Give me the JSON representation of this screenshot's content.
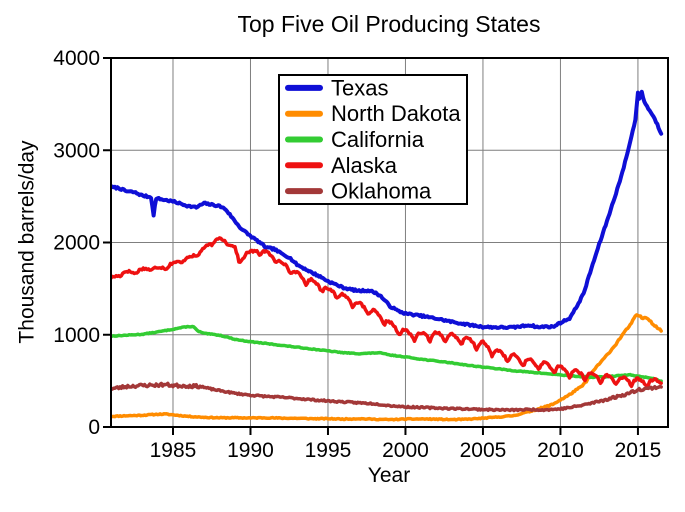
{
  "figure": {
    "title": "Top Five Oil Producing States",
    "xlabel": "Year",
    "ylabel": "Thousand barrels/day"
  },
  "chart_data": {
    "type": "line",
    "title": "Top Five Oil Producing States",
    "xlabel": "Year",
    "ylabel": "Thousand barrels/day",
    "xlim": [
      1981,
      2016.94
    ],
    "ylim": [
      0,
      4000
    ],
    "x_ticks": [
      1985,
      1990,
      1995,
      2000,
      2005,
      2010,
      2015
    ],
    "y_ticks": [
      0,
      1000,
      2000,
      3000,
      4000
    ],
    "grid": true,
    "grid_color": "#7f7f7f",
    "frame_color": "#000000",
    "legend_position": "inside upper-left",
    "units": "thousand barrels per day, monthly",
    "series": [
      {
        "name": "Texas",
        "color": "#0f0fd6",
        "points": [
          [
            1981,
            2600
          ],
          [
            1981.5,
            2590
          ],
          [
            1982,
            2555
          ],
          [
            1982.5,
            2545
          ],
          [
            1983,
            2510
          ],
          [
            1983.6,
            2490
          ],
          [
            1983.75,
            2290
          ],
          [
            1983.9,
            2480
          ],
          [
            1984.5,
            2460
          ],
          [
            1985,
            2445
          ],
          [
            1985.5,
            2420
          ],
          [
            1986,
            2395
          ],
          [
            1986.5,
            2380
          ],
          [
            1987,
            2425
          ],
          [
            1987.5,
            2410
          ],
          [
            1988,
            2395
          ],
          [
            1988.4,
            2360
          ],
          [
            1989,
            2230
          ],
          [
            1989.4,
            2150
          ],
          [
            1990,
            2070
          ],
          [
            1990.6,
            2000
          ],
          [
            1991,
            1945
          ],
          [
            1991.5,
            1930
          ],
          [
            1992,
            1880
          ],
          [
            1992.5,
            1840
          ],
          [
            1993,
            1760
          ],
          [
            1994,
            1670
          ],
          [
            1994.5,
            1630
          ],
          [
            1995,
            1580
          ],
          [
            1995.5,
            1545
          ],
          [
            1996,
            1510
          ],
          [
            1996.5,
            1490
          ],
          [
            1997,
            1475
          ],
          [
            1997.6,
            1480
          ],
          [
            1998,
            1460
          ],
          [
            1998.4,
            1420
          ],
          [
            1999,
            1310
          ],
          [
            1999.5,
            1260
          ],
          [
            2000,
            1230
          ],
          [
            2001,
            1205
          ],
          [
            2002,
            1175
          ],
          [
            2003,
            1140
          ],
          [
            2004,
            1110
          ],
          [
            2005,
            1085
          ],
          [
            2006,
            1080
          ],
          [
            2007,
            1080
          ],
          [
            2008,
            1105
          ],
          [
            2008.6,
            1080
          ],
          [
            2009,
            1090
          ],
          [
            2009.5,
            1085
          ],
          [
            2010,
            1130
          ],
          [
            2010.6,
            1180
          ],
          [
            2011,
            1290
          ],
          [
            2011.5,
            1450
          ],
          [
            2012,
            1720
          ],
          [
            2012.5,
            1980
          ],
          [
            2013,
            2230
          ],
          [
            2013.5,
            2490
          ],
          [
            2014,
            2760
          ],
          [
            2014.5,
            3090
          ],
          [
            2014.83,
            3330
          ],
          [
            2015,
            3620
          ],
          [
            2015.12,
            3540
          ],
          [
            2015.25,
            3635
          ],
          [
            2015.4,
            3530
          ],
          [
            2015.6,
            3470
          ],
          [
            2015.9,
            3395
          ],
          [
            2016.2,
            3300
          ],
          [
            2016.55,
            3160
          ]
        ],
        "render": {
          "seed": 7,
          "jitter": 10,
          "width": 4
        }
      },
      {
        "name": "North Dakota",
        "color": "#ff8c00",
        "points": [
          [
            1981,
            115
          ],
          [
            1982,
            122
          ],
          [
            1983,
            127
          ],
          [
            1984,
            138
          ],
          [
            1984.5,
            140
          ],
          [
            1985,
            132
          ],
          [
            1986,
            115
          ],
          [
            1987,
            105
          ],
          [
            1988,
            100
          ],
          [
            1989,
            100
          ],
          [
            1990,
            98
          ],
          [
            1991,
            100
          ],
          [
            1992,
            96
          ],
          [
            1993,
            94
          ],
          [
            1994,
            90
          ],
          [
            1995,
            90
          ],
          [
            1996,
            86
          ],
          [
            1997,
            90
          ],
          [
            1998,
            84
          ],
          [
            1999,
            80
          ],
          [
            2000,
            86
          ],
          [
            2001,
            87
          ],
          [
            2002,
            85
          ],
          [
            2003,
            80
          ],
          [
            2004,
            84
          ],
          [
            2005,
            95
          ],
          [
            2006,
            108
          ],
          [
            2007,
            124
          ],
          [
            2008,
            168
          ],
          [
            2008.5,
            192
          ],
          [
            2009,
            218
          ],
          [
            2009.5,
            245
          ],
          [
            2010,
            295
          ],
          [
            2010.5,
            340
          ],
          [
            2011,
            400
          ],
          [
            2011.3,
            430
          ],
          [
            2011.6,
            480
          ],
          [
            2012,
            575
          ],
          [
            2012.3,
            650
          ],
          [
            2012.6,
            700
          ],
          [
            2013,
            780
          ],
          [
            2013.5,
            880
          ],
          [
            2014,
            1000
          ],
          [
            2014.5,
            1105
          ],
          [
            2014.9,
            1215
          ],
          [
            2015.1,
            1205
          ],
          [
            2015.3,
            1175
          ],
          [
            2015.5,
            1195
          ],
          [
            2015.75,
            1160
          ],
          [
            2016,
            1110
          ],
          [
            2016.3,
            1070
          ],
          [
            2016.55,
            1035
          ]
        ],
        "render": {
          "seed": 11,
          "jitter": [
            [
              1981,
              5
            ],
            [
              2007,
              5
            ],
            [
              2009,
              8
            ],
            [
              2016.6,
              9
            ]
          ],
          "width": 3.5
        }
      },
      {
        "name": "California",
        "color": "#33cc33",
        "points": [
          [
            1981,
            985
          ],
          [
            1982,
            995
          ],
          [
            1983,
            1005
          ],
          [
            1984,
            1030
          ],
          [
            1985,
            1060
          ],
          [
            1985.8,
            1085
          ],
          [
            1986.3,
            1090
          ],
          [
            1986.6,
            1040
          ],
          [
            1987,
            1015
          ],
          [
            1987.5,
            1005
          ],
          [
            1988,
            995
          ],
          [
            1988.5,
            975
          ],
          [
            1989,
            950
          ],
          [
            1990,
            925
          ],
          [
            1991,
            905
          ],
          [
            1992,
            885
          ],
          [
            1993,
            865
          ],
          [
            1994,
            845
          ],
          [
            1995,
            825
          ],
          [
            1996,
            805
          ],
          [
            1997,
            795
          ],
          [
            1997.7,
            800
          ],
          [
            1998.3,
            805
          ],
          [
            1999,
            780
          ],
          [
            2000,
            760
          ],
          [
            2001,
            735
          ],
          [
            2002,
            715
          ],
          [
            2003,
            695
          ],
          [
            2004,
            670
          ],
          [
            2005,
            650
          ],
          [
            2006,
            630
          ],
          [
            2007,
            610
          ],
          [
            2008,
            595
          ],
          [
            2009,
            580
          ],
          [
            2010,
            565
          ],
          [
            2011,
            550
          ],
          [
            2012,
            540
          ],
          [
            2013,
            545
          ],
          [
            2014,
            560
          ],
          [
            2014.5,
            565
          ],
          [
            2015,
            550
          ],
          [
            2015.5,
            540
          ],
          [
            2016,
            525
          ],
          [
            2016.55,
            492
          ]
        ],
        "render": {
          "seed": 13,
          "jitter": 4,
          "width": 3.5
        }
      },
      {
        "name": "Alaska",
        "color": "#ee1111",
        "points": [
          [
            1981,
            1615
          ],
          [
            1981.5,
            1650
          ],
          [
            1982,
            1685
          ],
          [
            1982.5,
            1680
          ],
          [
            1983,
            1710
          ],
          [
            1983.5,
            1720
          ],
          [
            1984,
            1725
          ],
          [
            1984.5,
            1735
          ],
          [
            1985,
            1775
          ],
          [
            1985.5,
            1800
          ],
          [
            1986,
            1840
          ],
          [
            1986.5,
            1870
          ],
          [
            1987,
            1935
          ],
          [
            1987.5,
            2000
          ],
          [
            1987.9,
            2040
          ],
          [
            1988.3,
            2030
          ],
          [
            1988.7,
            1990
          ],
          [
            1989,
            1940
          ],
          [
            1989.3,
            1770
          ],
          [
            1989.6,
            1890
          ],
          [
            1990,
            1890
          ],
          [
            1990.5,
            1920
          ],
          [
            1991,
            1890
          ],
          [
            1991.5,
            1850
          ],
          [
            1992,
            1780
          ],
          [
            1992.5,
            1730
          ],
          [
            1993,
            1660
          ],
          [
            1993.5,
            1610
          ],
          [
            1994,
            1580
          ],
          [
            1994.5,
            1540
          ],
          [
            1995,
            1490
          ],
          [
            1995.5,
            1460
          ],
          [
            1996,
            1420
          ],
          [
            1996.5,
            1380
          ],
          [
            1997,
            1330
          ],
          [
            1997.5,
            1290
          ],
          [
            1998,
            1240
          ],
          [
            1998.5,
            1190
          ],
          [
            1999,
            1120
          ],
          [
            1999.5,
            1070
          ],
          [
            2000,
            1030
          ],
          [
            2000.5,
            1010
          ],
          [
            2001,
            1000
          ],
          [
            2002,
            1010
          ],
          [
            2003,
            990
          ],
          [
            2004,
            945
          ],
          [
            2005,
            900
          ],
          [
            2006,
            810
          ],
          [
            2007,
            760
          ],
          [
            2008,
            715
          ],
          [
            2009,
            680
          ],
          [
            2010,
            635
          ],
          [
            2011,
            595
          ],
          [
            2012,
            565
          ],
          [
            2013,
            540
          ],
          [
            2014,
            520
          ],
          [
            2015,
            505
          ],
          [
            2016,
            495
          ],
          [
            2016.55,
            510
          ]
        ],
        "render": {
          "seed": 17,
          "jitter": 12,
          "width": 3.5,
          "seasonal": [
            [
              1981,
              14
            ],
            [
              1988,
              24
            ],
            [
              1993,
              44
            ],
            [
              2000,
              55
            ],
            [
              2008,
              60
            ],
            [
              2016.6,
              45
            ]
          ]
        }
      },
      {
        "name": "Oklahoma",
        "color": "#a33838",
        "points": [
          [
            1981,
            415
          ],
          [
            1981.5,
            425
          ],
          [
            1982,
            440
          ],
          [
            1983,
            450
          ],
          [
            1984,
            455
          ],
          [
            1984.5,
            460
          ],
          [
            1985,
            450
          ],
          [
            1986,
            445
          ],
          [
            1986.8,
            440
          ],
          [
            1987.2,
            420
          ],
          [
            1988,
            395
          ],
          [
            1989,
            365
          ],
          [
            1990,
            345
          ],
          [
            1991,
            332
          ],
          [
            1992,
            322
          ],
          [
            1993,
            310
          ],
          [
            1994,
            295
          ],
          [
            1995,
            282
          ],
          [
            1996,
            272
          ],
          [
            1997,
            262
          ],
          [
            1998,
            252
          ],
          [
            1999,
            232
          ],
          [
            2000,
            218
          ],
          [
            2001,
            212
          ],
          [
            2002,
            206
          ],
          [
            2003,
            200
          ],
          [
            2004,
            196
          ],
          [
            2005,
            190
          ],
          [
            2006,
            186
          ],
          [
            2007,
            184
          ],
          [
            2008,
            190
          ],
          [
            2009,
            186
          ],
          [
            2010,
            196
          ],
          [
            2011,
            222
          ],
          [
            2012,
            258
          ],
          [
            2013,
            300
          ],
          [
            2014,
            345
          ],
          [
            2014.5,
            370
          ],
          [
            2015,
            405
          ],
          [
            2015.5,
            415
          ],
          [
            2016,
            425
          ],
          [
            2016.55,
            442
          ]
        ],
        "render": {
          "seed": 23,
          "jitter": [
            [
              1981,
              17
            ],
            [
              1986.5,
              17
            ],
            [
              1987.5,
              8
            ],
            [
              2010,
              8
            ],
            [
              2012,
              13
            ],
            [
              2016.6,
              15
            ]
          ],
          "width": 3.5
        }
      }
    ]
  },
  "legend": {
    "entries": [
      "Texas",
      "North Dakota",
      "California",
      "Alaska",
      "Oklahoma"
    ]
  }
}
